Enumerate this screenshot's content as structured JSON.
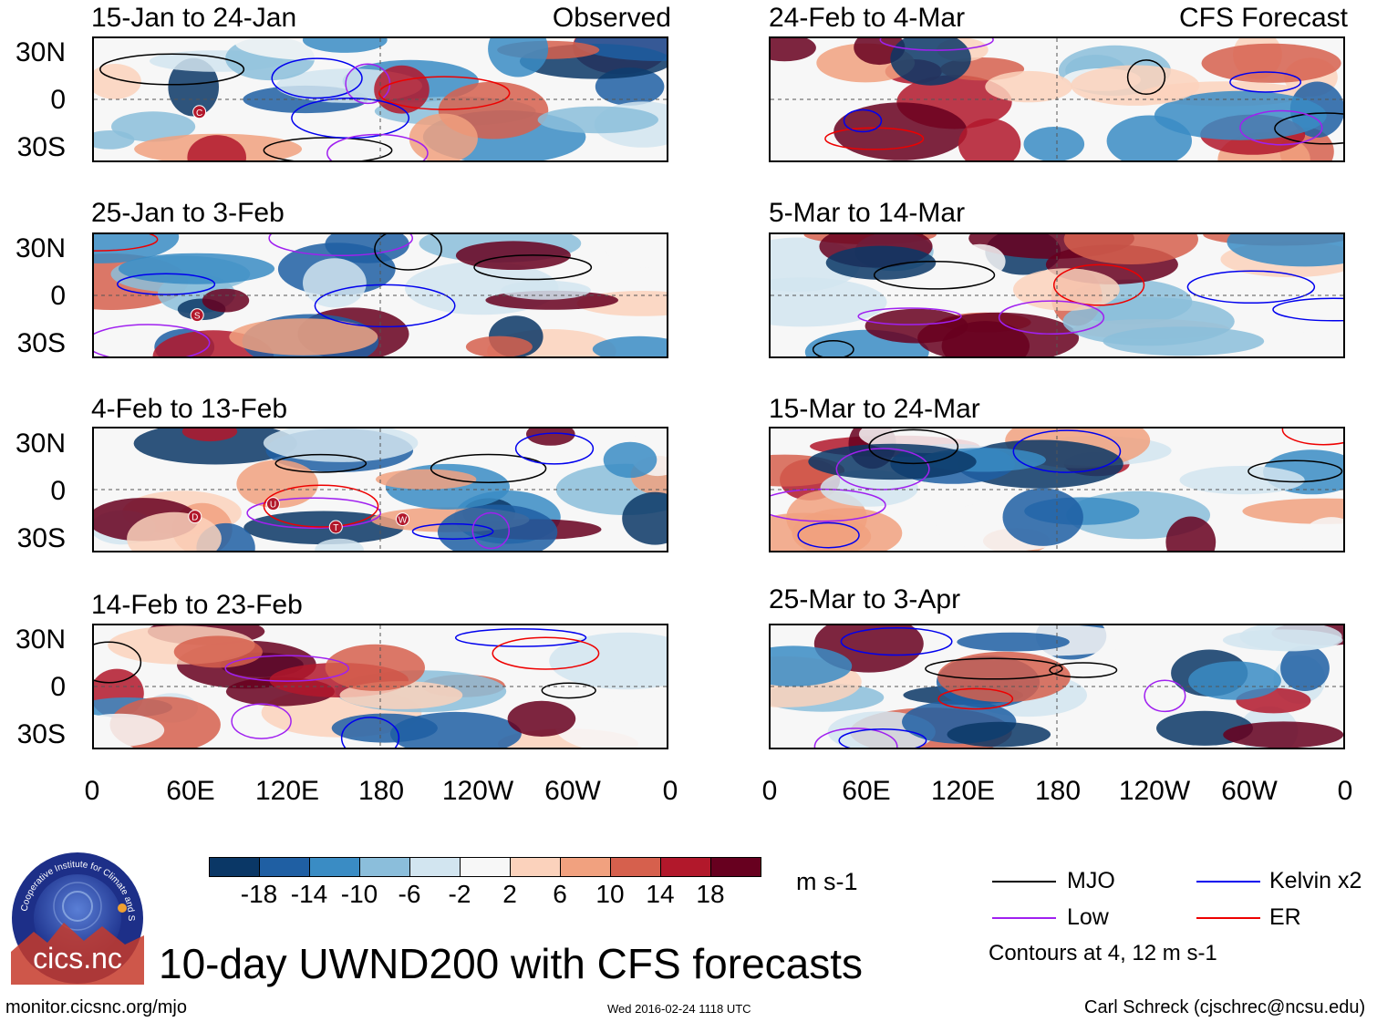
{
  "panels": [
    {
      "title": "15-Jan to 24-Jan",
      "tag": "Observed",
      "markers": [
        "C"
      ]
    },
    {
      "title": "25-Jan to 3-Feb",
      "tag": "",
      "markers": [
        "S"
      ]
    },
    {
      "title": "4-Feb to 13-Feb",
      "tag": "",
      "markers": [
        "D",
        "U",
        "T",
        "W"
      ]
    },
    {
      "title": "14-Feb to 23-Feb",
      "tag": "",
      "markers": []
    },
    {
      "title": "24-Feb to 4-Mar",
      "tag": "CFS Forecast",
      "markers": []
    },
    {
      "title": "5-Mar to 14-Mar",
      "tag": "",
      "markers": []
    },
    {
      "title": "15-Mar to 24-Mar",
      "tag": "",
      "markers": []
    },
    {
      "title": "25-Mar to 3-Apr",
      "tag": "",
      "markers": []
    }
  ],
  "lat_labels": [
    "30N",
    "0",
    "30S"
  ],
  "lon_labels": [
    "0",
    "60E",
    "120E",
    "180",
    "120W",
    "60W",
    "0"
  ],
  "colorbar": {
    "labels": [
      "-18",
      "-14",
      "-10",
      "-6",
      "-2",
      "2",
      "6",
      "10",
      "14",
      "18"
    ],
    "colors": [
      "#0a3766",
      "#1f5fa3",
      "#3a8cc4",
      "#8bbedb",
      "#d2e5f0",
      "#f7f7f7",
      "#fbd2bc",
      "#f1a17f",
      "#d6604d",
      "#b2182b",
      "#67001f"
    ],
    "units": "m s-1"
  },
  "legend": {
    "items": [
      {
        "label": "MJO",
        "color": "#000000"
      },
      {
        "label": "Kelvin x2",
        "color": "#0000ee"
      },
      {
        "label": "Low",
        "color": "#a020f0"
      },
      {
        "label": "ER",
        "color": "#ee0000"
      }
    ],
    "note": "Contours at 4, 12 m s-1"
  },
  "logo_text": "cics.nc",
  "logo_ring_text": "Cooperative Institute for Climate and Satellites",
  "main_title": "10-day UWND200 with CFS forecasts",
  "footer": {
    "url": "monitor.cicsnc.org/mjo",
    "timestamp": "Wed 2016-02-24 1118 UTC",
    "credit": "Carl Schreck (cjschrec@ncsu.edu)"
  }
}
